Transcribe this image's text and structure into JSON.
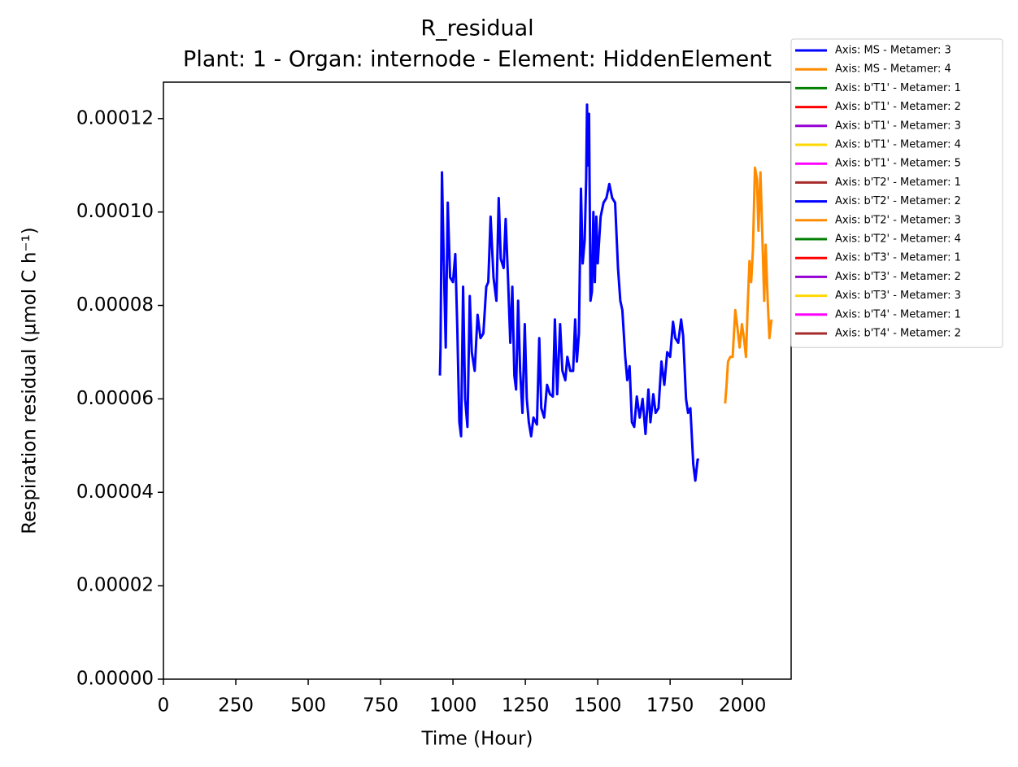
{
  "chart_data": {
    "type": "line",
    "title": "R_residual",
    "subtitle": "Plant: 1 - Organ: internode - Element: HiddenElement",
    "x_label": "Time (Hour)",
    "y_label": "Respiration residual (µmol C h⁻¹)",
    "xlim": [
      0,
      2168
    ],
    "ylim": [
      0,
      0.0001278
    ],
    "xticks": [
      0,
      250,
      500,
      750,
      1000,
      1250,
      1500,
      1750,
      2000
    ],
    "yticks": [
      {
        "value": 0,
        "label": "0.00000"
      },
      {
        "value": 2e-05,
        "label": "0.00002"
      },
      {
        "value": 4e-05,
        "label": "0.00004"
      },
      {
        "value": 6e-05,
        "label": "0.00006"
      },
      {
        "value": 8e-05,
        "label": "0.00008"
      },
      {
        "value": 0.0001,
        "label": "0.00010"
      },
      {
        "value": 0.00012,
        "label": "0.00012"
      }
    ],
    "legend": "outside upper right",
    "series": [
      {
        "name": "Axis: MS - Metamer: 3",
        "color": "#0000ff",
        "x": [
          955,
          957,
          962,
          968,
          975,
          982,
          990,
          1000,
          1008,
          1015,
          1022,
          1028,
          1035,
          1042,
          1050,
          1058,
          1065,
          1075,
          1085,
          1095,
          1105,
          1115,
          1122,
          1130,
          1140,
          1150,
          1158,
          1165,
          1175,
          1182,
          1190,
          1198,
          1205,
          1212,
          1218,
          1225,
          1232,
          1240,
          1248,
          1255,
          1262,
          1270,
          1278,
          1290,
          1298,
          1305,
          1315,
          1325,
          1335,
          1345,
          1352,
          1360,
          1370,
          1378,
          1388,
          1395,
          1405,
          1415,
          1422,
          1428,
          1435,
          1442,
          1448,
          1455,
          1460,
          1463,
          1466,
          1470,
          1475,
          1480,
          1485,
          1490,
          1495,
          1500,
          1510,
          1520,
          1530,
          1540,
          1550,
          1560,
          1570,
          1578,
          1585,
          1595,
          1602,
          1610,
          1618,
          1626,
          1635,
          1645,
          1655,
          1665,
          1675,
          1682,
          1692,
          1700,
          1710,
          1720,
          1730,
          1740,
          1750,
          1760,
          1768,
          1778,
          1788,
          1795,
          1805,
          1812,
          1820,
          1830,
          1837,
          1845,
          1850
        ],
        "values": [
          6.5e-05,
          7.1e-05,
          0.0001085,
          9e-05,
          7.1e-05,
          0.000102,
          8.6e-05,
          8.5e-05,
          9.1e-05,
          7.5e-05,
          5.5e-05,
          5.2e-05,
          8.4e-05,
          6e-05,
          5.4e-05,
          8.2e-05,
          7e-05,
          6.6e-05,
          7.8e-05,
          7.3e-05,
          7.4e-05,
          8.4e-05,
          8.5e-05,
          9.9e-05,
          8.6e-05,
          8.1e-05,
          0.000103,
          9e-05,
          8.8e-05,
          9.85e-05,
          8.6e-05,
          7.2e-05,
          8.4e-05,
          6.5e-05,
          6.2e-05,
          8.1e-05,
          6.6e-05,
          5.7e-05,
          7.6e-05,
          6e-05,
          5.5e-05,
          5.2e-05,
          5.6e-05,
          5.45e-05,
          7.3e-05,
          5.8e-05,
          5.6e-05,
          6.3e-05,
          6.1e-05,
          6.05e-05,
          7.7e-05,
          6.1e-05,
          7.6e-05,
          6.6e-05,
          6.4e-05,
          6.9e-05,
          6.6e-05,
          6.6e-05,
          7.7e-05,
          6.8e-05,
          7.4e-05,
          0.000105,
          8.9e-05,
          9.4e-05,
          0.000107,
          0.000123,
          0.00011,
          0.000121,
          8.1e-05,
          8.3e-05,
          0.0001,
          8.5e-05,
          9.9e-05,
          8.9e-05,
          9.9e-05,
          0.000102,
          0.000103,
          0.000106,
          0.000103,
          0.000102,
          8.8e-05,
          8.1e-05,
          7.9e-05,
          6.9e-05,
          6.4e-05,
          6.7e-05,
          5.5e-05,
          5.4e-05,
          6.05e-05,
          5.6e-05,
          6e-05,
          5.25e-05,
          6.2e-05,
          5.5e-05,
          6.1e-05,
          5.7e-05,
          5.8e-05,
          6.8e-05,
          6.3e-05,
          7e-05,
          6.9e-05,
          7.65e-05,
          7.3e-05,
          7.2e-05,
          7.7e-05,
          7.35e-05,
          6e-05,
          5.7e-05,
          5.8e-05,
          4.6e-05,
          4.25e-05,
          4.7e-05,
          4.7e-05
        ]
      },
      {
        "name": "Axis: MS - Metamer: 4",
        "color": "#ff8c00",
        "x": [
          1940,
          1945,
          1950,
          1958,
          1966,
          1975,
          1983,
          1990,
          1998,
          2005,
          2012,
          2018,
          2024,
          2030,
          2036,
          2043,
          2050,
          2055,
          2062,
          2068,
          2075,
          2080,
          2087,
          2093,
          2100
        ],
        "values": [
          5.9e-05,
          6.3e-05,
          6.8e-05,
          6.9e-05,
          6.9e-05,
          7.9e-05,
          7.5e-05,
          7.1e-05,
          7.6e-05,
          7.3e-05,
          6.9e-05,
          8e-05,
          8.95e-05,
          8.5e-05,
          9.2e-05,
          0.0001095,
          0.000107,
          9.6e-05,
          0.0001085,
          9.6e-05,
          8.1e-05,
          9.3e-05,
          8.1e-05,
          7.3e-05,
          7.7e-05
        ]
      },
      {
        "name": "Axis: b'T1' - Metamer: 1",
        "color": "#008000",
        "x": [],
        "values": []
      },
      {
        "name": "Axis: b'T1' - Metamer: 2",
        "color": "#ff0000",
        "x": [],
        "values": []
      },
      {
        "name": "Axis: b'T1' - Metamer: 3",
        "color": "#9400d3",
        "x": [],
        "values": []
      },
      {
        "name": "Axis: b'T1' - Metamer: 4",
        "color": "#ffd700",
        "x": [],
        "values": []
      },
      {
        "name": "Axis: b'T1' - Metamer: 5",
        "color": "#ff00ff",
        "x": [],
        "values": []
      },
      {
        "name": "Axis: b'T2' - Metamer: 1",
        "color": "#a52a2a",
        "x": [],
        "values": []
      },
      {
        "name": "Axis: b'T2' - Metamer: 2",
        "color": "#0000ff",
        "x": [],
        "values": []
      },
      {
        "name": "Axis: b'T2' - Metamer: 3",
        "color": "#ff8c00",
        "x": [],
        "values": []
      },
      {
        "name": "Axis: b'T2' - Metamer: 4",
        "color": "#008000",
        "x": [],
        "values": []
      },
      {
        "name": "Axis: b'T3' - Metamer: 1",
        "color": "#ff0000",
        "x": [],
        "values": []
      },
      {
        "name": "Axis: b'T3' - Metamer: 2",
        "color": "#9400d3",
        "x": [],
        "values": []
      },
      {
        "name": "Axis: b'T3' - Metamer: 3",
        "color": "#ffd700",
        "x": [],
        "values": []
      },
      {
        "name": "Axis: b'T4' - Metamer: 1",
        "color": "#ff00ff",
        "x": [],
        "values": []
      },
      {
        "name": "Axis: b'T4' - Metamer: 2",
        "color": "#a52a2a",
        "x": [],
        "values": []
      }
    ]
  }
}
